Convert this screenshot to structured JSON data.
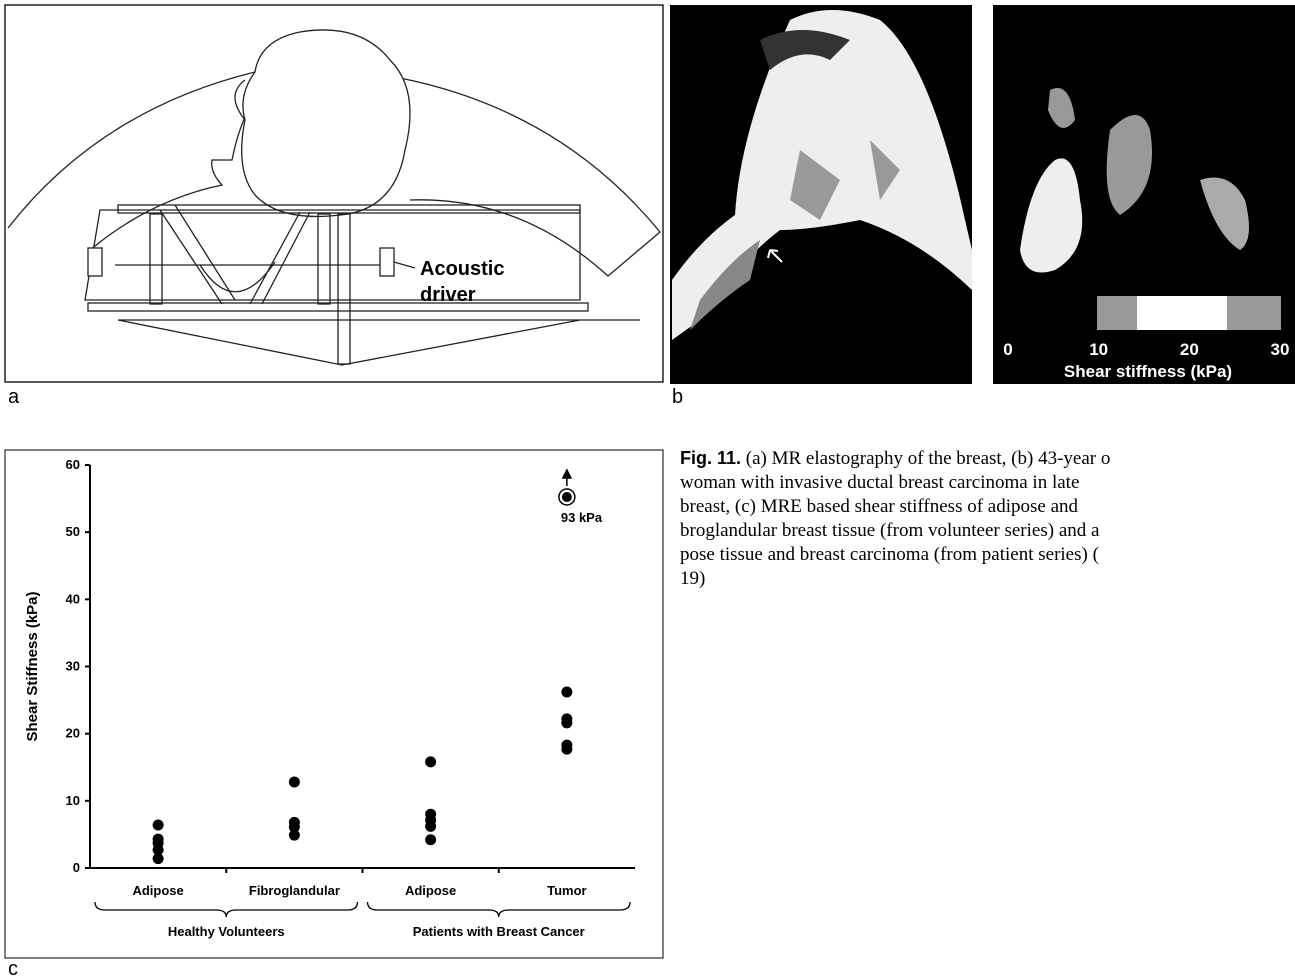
{
  "panel_a": {
    "label": "a",
    "driver_lines": [
      "Acoustic",
      "driver"
    ]
  },
  "panel_b": {
    "label": "b",
    "colorbar": {
      "range": [
        0,
        30
      ],
      "ticks": [
        0,
        10,
        20,
        30
      ],
      "label": "Shear stiffness (kPa)"
    }
  },
  "panel_c": {
    "label": "c"
  },
  "chart_data": {
    "type": "strip",
    "ylabel": "Shear Stiffness (kPa)",
    "categories": [
      "Adipose",
      "Fibroglandular",
      "Adipose",
      "Tumor"
    ],
    "groups": [
      "Healthy Volunteers",
      "Patients with Breast Cancer"
    ],
    "values": [
      [
        6.4,
        4.3,
        3.7,
        2.7,
        1.4
      ],
      [
        12.8,
        6.8,
        6.1,
        4.9
      ],
      [
        15.8,
        8,
        7.1,
        6.2,
        4.2
      ],
      [
        26.2,
        22.2,
        21.6,
        18.3,
        17.7
      ]
    ],
    "color": "#000000",
    "ylim": [
      0,
      60
    ],
    "yticks": [
      0,
      10,
      20,
      30,
      40,
      50,
      60
    ],
    "annotation": "93 kPa"
  },
  "caption": {
    "figure": "Fig. 11.",
    "lines": [
      " (a) MR elastography of the breast, (b) 43-year o",
      "woman with invasive ductal breast carcinoma in late",
      "breast, (c) MRE based shear stiffness of adipose and",
      "broglandular breast tissue (from volunteer series) and a",
      "pose tissue and breast carcinoma (from patient series) (",
      "19)"
    ]
  }
}
